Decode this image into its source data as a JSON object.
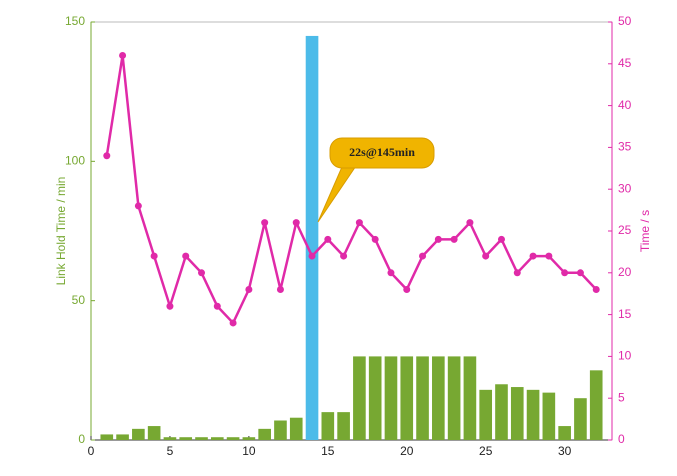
{
  "chart_data": {
    "type": "bar-line",
    "x": [
      1,
      2,
      3,
      4,
      5,
      6,
      7,
      8,
      9,
      10,
      11,
      12,
      13,
      14,
      15,
      16,
      17,
      18,
      19,
      20,
      21,
      22,
      23,
      24,
      25,
      26,
      27,
      28,
      29,
      30,
      31,
      32
    ],
    "series": [
      {
        "type": "bar",
        "values": [
          2,
          2,
          4,
          5,
          1,
          1,
          1,
          1,
          1,
          1,
          4,
          7,
          8,
          145,
          10,
          10,
          30,
          30,
          30,
          30,
          30,
          30,
          30,
          30,
          18,
          20,
          19,
          18,
          17,
          5,
          15,
          25
        ],
        "colors": [
          "#77a832",
          "#77a832",
          "#77a832",
          "#77a832",
          "#77a832",
          "#77a832",
          "#77a832",
          "#77a832",
          "#77a832",
          "#77a832",
          "#77a832",
          "#77a832",
          "#77a832",
          "#4cbbe9",
          "#77a832",
          "#77a832",
          "#77a832",
          "#77a832",
          "#77a832",
          "#77a832",
          "#77a832",
          "#77a832",
          "#77a832",
          "#77a832",
          "#77a832",
          "#77a832",
          "#77a832",
          "#77a832",
          "#77a832",
          "#77a832",
          "#77a832",
          "#77a832"
        ]
      },
      {
        "type": "line",
        "axis": "y2",
        "color": "#e02aa8",
        "values": [
          34,
          46,
          28,
          22,
          16,
          22,
          20,
          16,
          14,
          18,
          26,
          18,
          26,
          22,
          24,
          22,
          26,
          24,
          20,
          18,
          22,
          24,
          24,
          26,
          22,
          24,
          20,
          22,
          22,
          20,
          20,
          18
        ]
      }
    ],
    "ylabel": "Link Hold Time / min",
    "y2label": "Time / s",
    "xlim": [
      0,
      33
    ],
    "xticks": [
      0,
      5,
      10,
      15,
      20,
      25,
      30
    ],
    "ylim": [
      0,
      150
    ],
    "yticks": [
      0,
      50,
      100,
      150
    ],
    "y2lim": [
      0,
      50
    ],
    "y2ticks": [
      0,
      5,
      10,
      15,
      20,
      25,
      30,
      35,
      40,
      45,
      50
    ],
    "annotation": "22s@145min"
  }
}
